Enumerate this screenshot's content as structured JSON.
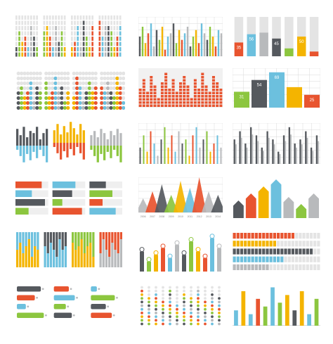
{
  "colors": {
    "charcoal": "#55595e",
    "green": "#8cc63f",
    "yellow": "#f4b400",
    "red": "#e8542f",
    "blue": "#6cc0de",
    "grey": "#b8babc",
    "lightgrey": "#e4e4e4",
    "grid": "#d9d9d9"
  },
  "chart_data": [
    {
      "id": "c1",
      "type": "bar",
      "title": "",
      "series": [
        {
          "values": [
            3,
            6,
            4,
            5,
            2,
            7,
            5,
            3
          ]
        },
        {
          "values": [
            6,
            8,
            5,
            3,
            7,
            4,
            6,
            2
          ]
        },
        {
          "values": [
            2,
            4,
            8,
            3,
            9,
            5,
            3,
            7
          ]
        },
        {
          "values": [
            9,
            5,
            7,
            8,
            6,
            3,
            5,
            8
          ]
        }
      ],
      "ylim": [
        0,
        10
      ]
    },
    {
      "id": "c2",
      "type": "bar",
      "title": "",
      "values": [
        6,
        9,
        4,
        7,
        10,
        3,
        8,
        5,
        9,
        2,
        6,
        7,
        10,
        4,
        8,
        5,
        7,
        9,
        3,
        6,
        8,
        4,
        10,
        7,
        5,
        9,
        6,
        3,
        8,
        7
      ],
      "ylim": [
        0,
        12
      ]
    },
    {
      "id": "c3",
      "type": "bar",
      "title": "",
      "categories": [
        "",
        "",
        "",
        "",
        "",
        "",
        ""
      ],
      "values": [
        35,
        56,
        60,
        45,
        20,
        50,
        12
      ],
      "labels": [
        "35",
        "56",
        "",
        "45",
        "",
        "50",
        ""
      ],
      "ylim": [
        0,
        100
      ]
    },
    {
      "id": "c4",
      "type": "bar",
      "title": "",
      "series": [
        {
          "values": [
            4,
            6,
            3,
            5,
            7,
            2,
            6,
            4
          ]
        },
        {
          "values": [
            7,
            3,
            5,
            8,
            4,
            6,
            2,
            5
          ]
        },
        {
          "values": [
            3,
            8,
            6,
            2,
            5,
            7,
            4,
            6
          ]
        },
        {
          "values": [
            6,
            4,
            7,
            5,
            3,
            8,
            6,
            2
          ]
        }
      ],
      "ylim": [
        0,
        9
      ]
    },
    {
      "id": "c5",
      "type": "bar",
      "title": "",
      "values": [
        5,
        8,
        4,
        9,
        6,
        3,
        7,
        10,
        5,
        8,
        4,
        7,
        9,
        6,
        3,
        8,
        5,
        10,
        6,
        4,
        9,
        7,
        5
      ],
      "ylim": [
        0,
        11
      ]
    },
    {
      "id": "c6",
      "type": "bar",
      "title": "",
      "categories": [
        "",
        "",
        "",
        "",
        ""
      ],
      "values": [
        31,
        54,
        69,
        40,
        25
      ],
      "labels": [
        "31",
        "54",
        "69",
        "",
        "25"
      ],
      "ylim": [
        0,
        100
      ]
    },
    {
      "id": "c7",
      "type": "bar",
      "title": "",
      "series": [
        {
          "values": [
            8,
            5,
            9,
            4,
            7,
            6,
            9,
            3,
            6,
            8
          ]
        },
        {
          "values": [
            6,
            9,
            4,
            8,
            5,
            10,
            7,
            4,
            9,
            6
          ]
        },
        {
          "values": [
            5,
            7,
            4,
            8,
            6,
            3,
            7,
            5,
            8,
            6
          ]
        }
      ],
      "ylim": [
        0,
        10
      ]
    },
    {
      "id": "c8",
      "type": "bar",
      "title": "",
      "values": [
        4,
        7,
        3,
        8,
        5,
        2,
        6,
        9,
        4,
        7,
        3,
        8,
        5,
        6,
        2,
        7,
        9,
        4,
        6,
        8,
        3,
        5,
        7,
        4
      ],
      "ylim": [
        0,
        10
      ]
    },
    {
      "id": "c9",
      "type": "bar",
      "title": "",
      "values": [
        6,
        8,
        5,
        9,
        7,
        4,
        8,
        6,
        3,
        7,
        9,
        5,
        6,
        8,
        4,
        7
      ],
      "ylim": [
        0,
        10
      ]
    },
    {
      "id": "c10",
      "type": "bar",
      "title": "",
      "values": [
        8,
        5,
        9,
        4,
        7,
        6,
        3,
        9,
        5,
        7,
        4,
        8
      ],
      "ylim": [
        0,
        10
      ]
    },
    {
      "id": "c11",
      "type": "area",
      "title": "",
      "categories": [
        "2006",
        "2007",
        "2008",
        "2009",
        "2010",
        "2011",
        "2012",
        "2013",
        "2014"
      ],
      "values": [
        4,
        6,
        8,
        5,
        9,
        7,
        10,
        6,
        5
      ],
      "ylim": [
        0,
        10
      ]
    },
    {
      "id": "c12",
      "type": "bar",
      "title": "",
      "values": [
        5,
        7,
        9,
        11,
        6,
        4,
        7
      ],
      "ylim": [
        0,
        12
      ]
    },
    {
      "id": "c13",
      "type": "bar",
      "title": "",
      "series": [
        {
          "values": [
            5,
            7,
            4,
            6,
            8,
            3,
            6,
            5
          ]
        },
        {
          "values": [
            6,
            4,
            7,
            5,
            3,
            8,
            5,
            6
          ]
        },
        {
          "values": [
            7,
            5,
            6,
            8,
            4,
            6,
            7,
            3
          ]
        },
        {
          "values": [
            4,
            8,
            5,
            3,
            7,
            5,
            4,
            8
          ]
        }
      ],
      "ylim": [
        0,
        10
      ]
    },
    {
      "id": "c14",
      "type": "bar",
      "title": "",
      "values": [
        6,
        3,
        5,
        7,
        4,
        8,
        5,
        9,
        6,
        4,
        10,
        7
      ],
      "ylim": [
        0,
        11
      ]
    },
    {
      "id": "c15",
      "type": "bar",
      "title": "",
      "values": [
        7,
        5,
        9,
        6,
        4
      ],
      "ylim": [
        0,
        10
      ]
    },
    {
      "id": "c16",
      "type": "bar",
      "title": "",
      "values": [
        8,
        6,
        3,
        9,
        5,
        7,
        4,
        6,
        2,
        8,
        5,
        7
      ],
      "ylim": [
        0,
        10
      ]
    },
    {
      "id": "c17",
      "type": "scatter",
      "title": "",
      "values": [
        9,
        7,
        8,
        6,
        9,
        5,
        8,
        7,
        9,
        6,
        8,
        7
      ],
      "ylim": [
        0,
        10
      ]
    },
    {
      "id": "c18",
      "type": "bar",
      "title": "",
      "values": [
        4,
        9,
        3,
        7,
        5,
        10,
        6,
        8,
        4,
        9,
        3,
        7
      ],
      "ylim": [
        0,
        11
      ]
    }
  ]
}
